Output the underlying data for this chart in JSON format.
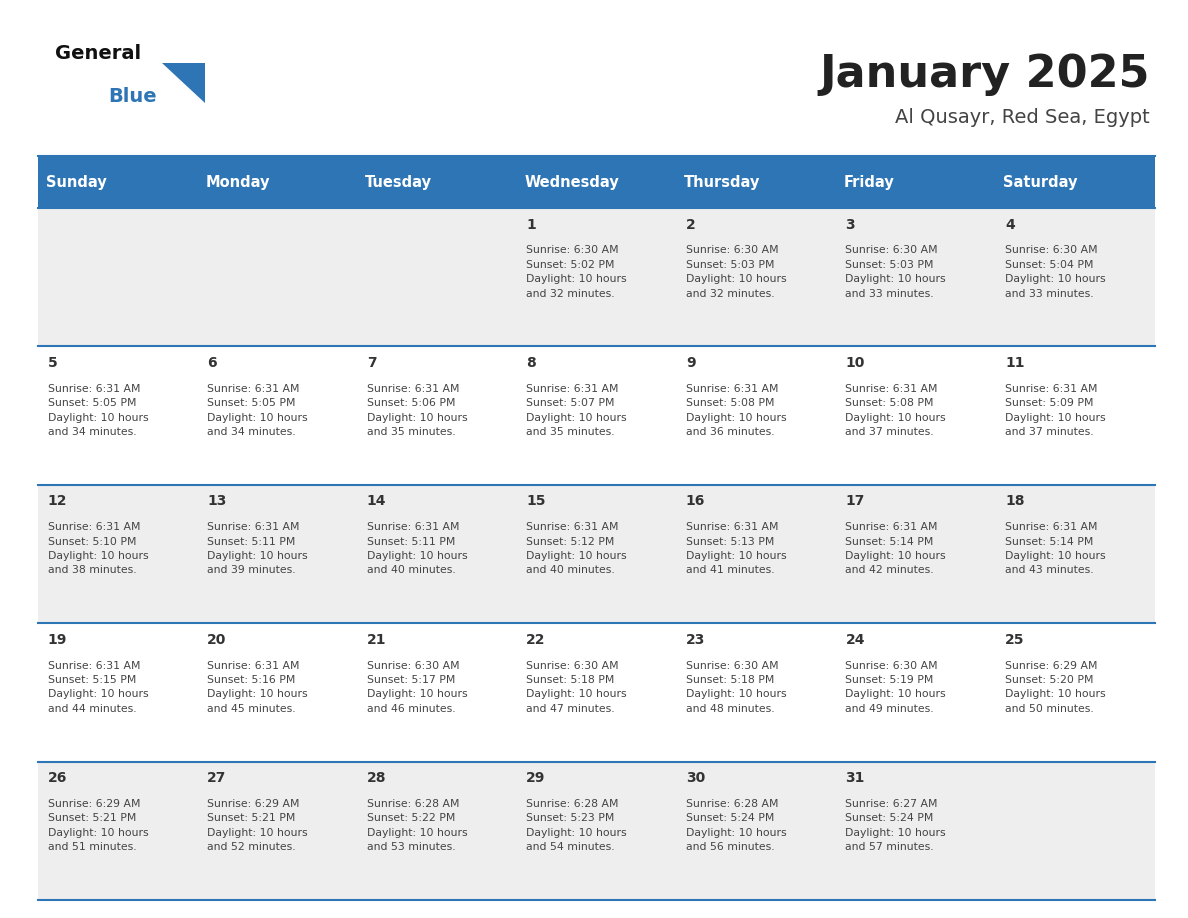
{
  "title": "January 2025",
  "subtitle": "Al Qusayr, Red Sea, Egypt",
  "header_bg": "#2E75B6",
  "header_text_color": "#FFFFFF",
  "cell_bg_light": "#EEEEEE",
  "cell_bg_white": "#FFFFFF",
  "day_number_color": "#333333",
  "cell_text_color": "#444444",
  "line_color": "#2E75B6",
  "days_of_week": [
    "Sunday",
    "Monday",
    "Tuesday",
    "Wednesday",
    "Thursday",
    "Friday",
    "Saturday"
  ],
  "weeks": [
    [
      {
        "day": null,
        "info": null
      },
      {
        "day": null,
        "info": null
      },
      {
        "day": null,
        "info": null
      },
      {
        "day": 1,
        "info": "Sunrise: 6:30 AM\nSunset: 5:02 PM\nDaylight: 10 hours\nand 32 minutes."
      },
      {
        "day": 2,
        "info": "Sunrise: 6:30 AM\nSunset: 5:03 PM\nDaylight: 10 hours\nand 32 minutes."
      },
      {
        "day": 3,
        "info": "Sunrise: 6:30 AM\nSunset: 5:03 PM\nDaylight: 10 hours\nand 33 minutes."
      },
      {
        "day": 4,
        "info": "Sunrise: 6:30 AM\nSunset: 5:04 PM\nDaylight: 10 hours\nand 33 minutes."
      }
    ],
    [
      {
        "day": 5,
        "info": "Sunrise: 6:31 AM\nSunset: 5:05 PM\nDaylight: 10 hours\nand 34 minutes."
      },
      {
        "day": 6,
        "info": "Sunrise: 6:31 AM\nSunset: 5:05 PM\nDaylight: 10 hours\nand 34 minutes."
      },
      {
        "day": 7,
        "info": "Sunrise: 6:31 AM\nSunset: 5:06 PM\nDaylight: 10 hours\nand 35 minutes."
      },
      {
        "day": 8,
        "info": "Sunrise: 6:31 AM\nSunset: 5:07 PM\nDaylight: 10 hours\nand 35 minutes."
      },
      {
        "day": 9,
        "info": "Sunrise: 6:31 AM\nSunset: 5:08 PM\nDaylight: 10 hours\nand 36 minutes."
      },
      {
        "day": 10,
        "info": "Sunrise: 6:31 AM\nSunset: 5:08 PM\nDaylight: 10 hours\nand 37 minutes."
      },
      {
        "day": 11,
        "info": "Sunrise: 6:31 AM\nSunset: 5:09 PM\nDaylight: 10 hours\nand 37 minutes."
      }
    ],
    [
      {
        "day": 12,
        "info": "Sunrise: 6:31 AM\nSunset: 5:10 PM\nDaylight: 10 hours\nand 38 minutes."
      },
      {
        "day": 13,
        "info": "Sunrise: 6:31 AM\nSunset: 5:11 PM\nDaylight: 10 hours\nand 39 minutes."
      },
      {
        "day": 14,
        "info": "Sunrise: 6:31 AM\nSunset: 5:11 PM\nDaylight: 10 hours\nand 40 minutes."
      },
      {
        "day": 15,
        "info": "Sunrise: 6:31 AM\nSunset: 5:12 PM\nDaylight: 10 hours\nand 40 minutes."
      },
      {
        "day": 16,
        "info": "Sunrise: 6:31 AM\nSunset: 5:13 PM\nDaylight: 10 hours\nand 41 minutes."
      },
      {
        "day": 17,
        "info": "Sunrise: 6:31 AM\nSunset: 5:14 PM\nDaylight: 10 hours\nand 42 minutes."
      },
      {
        "day": 18,
        "info": "Sunrise: 6:31 AM\nSunset: 5:14 PM\nDaylight: 10 hours\nand 43 minutes."
      }
    ],
    [
      {
        "day": 19,
        "info": "Sunrise: 6:31 AM\nSunset: 5:15 PM\nDaylight: 10 hours\nand 44 minutes."
      },
      {
        "day": 20,
        "info": "Sunrise: 6:31 AM\nSunset: 5:16 PM\nDaylight: 10 hours\nand 45 minutes."
      },
      {
        "day": 21,
        "info": "Sunrise: 6:30 AM\nSunset: 5:17 PM\nDaylight: 10 hours\nand 46 minutes."
      },
      {
        "day": 22,
        "info": "Sunrise: 6:30 AM\nSunset: 5:18 PM\nDaylight: 10 hours\nand 47 minutes."
      },
      {
        "day": 23,
        "info": "Sunrise: 6:30 AM\nSunset: 5:18 PM\nDaylight: 10 hours\nand 48 minutes."
      },
      {
        "day": 24,
        "info": "Sunrise: 6:30 AM\nSunset: 5:19 PM\nDaylight: 10 hours\nand 49 minutes."
      },
      {
        "day": 25,
        "info": "Sunrise: 6:29 AM\nSunset: 5:20 PM\nDaylight: 10 hours\nand 50 minutes."
      }
    ],
    [
      {
        "day": 26,
        "info": "Sunrise: 6:29 AM\nSunset: 5:21 PM\nDaylight: 10 hours\nand 51 minutes."
      },
      {
        "day": 27,
        "info": "Sunrise: 6:29 AM\nSunset: 5:21 PM\nDaylight: 10 hours\nand 52 minutes."
      },
      {
        "day": 28,
        "info": "Sunrise: 6:28 AM\nSunset: 5:22 PM\nDaylight: 10 hours\nand 53 minutes."
      },
      {
        "day": 29,
        "info": "Sunrise: 6:28 AM\nSunset: 5:23 PM\nDaylight: 10 hours\nand 54 minutes."
      },
      {
        "day": 30,
        "info": "Sunrise: 6:28 AM\nSunset: 5:24 PM\nDaylight: 10 hours\nand 56 minutes."
      },
      {
        "day": 31,
        "info": "Sunrise: 6:27 AM\nSunset: 5:24 PM\nDaylight: 10 hours\nand 57 minutes."
      },
      {
        "day": null,
        "info": null
      }
    ]
  ]
}
